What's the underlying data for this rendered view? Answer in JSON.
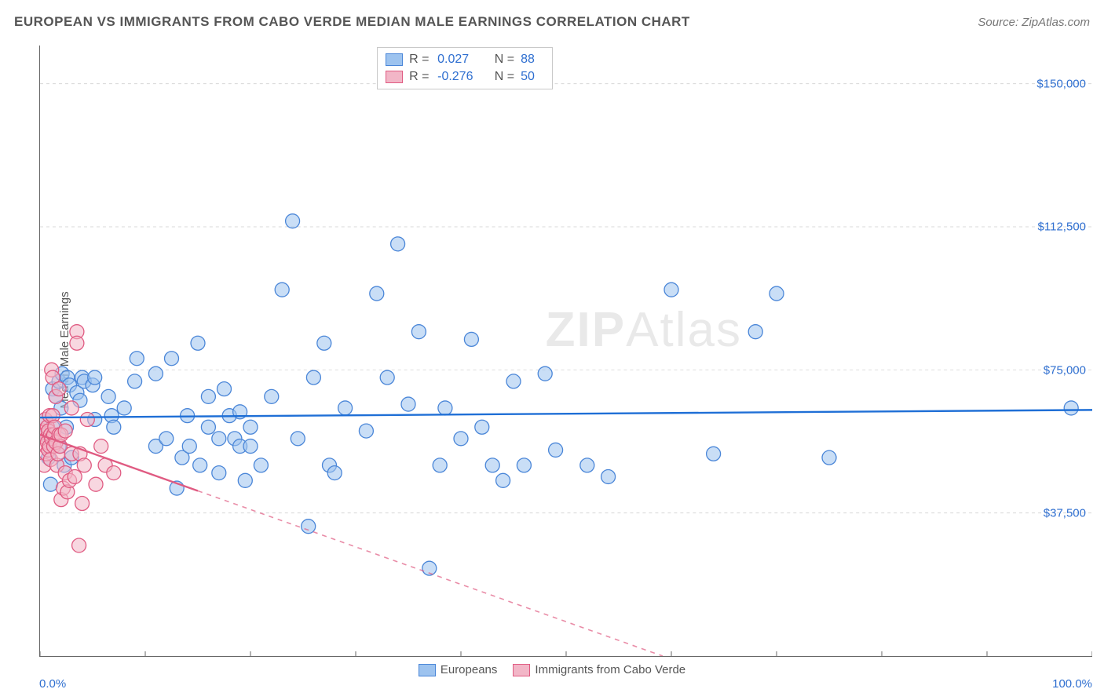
{
  "title": "EUROPEAN VS IMMIGRANTS FROM CABO VERDE MEDIAN MALE EARNINGS CORRELATION CHART",
  "source_label": "Source: ",
  "source_name": "ZipAtlas.com",
  "ylabel": "Median Male Earnings",
  "watermark_a": "ZIP",
  "watermark_b": "Atlas",
  "chart": {
    "type": "scatter",
    "x_domain": [
      0,
      100
    ],
    "y_domain": [
      0,
      160000
    ],
    "x_tick_positions": [
      0,
      10,
      20,
      30,
      40,
      50,
      60,
      70,
      80,
      90,
      100
    ],
    "x_labels": {
      "min": "0.0%",
      "max": "100.0%"
    },
    "y_grid": [
      {
        "v": 37500,
        "label": "$37,500"
      },
      {
        "v": 75000,
        "label": "$75,000"
      },
      {
        "v": 112500,
        "label": "$112,500"
      },
      {
        "v": 150000,
        "label": "$150,000"
      }
    ],
    "background_color": "#ffffff",
    "grid_color": "#d8d8d8",
    "axis_color": "#666666",
    "label_color": "#2f6fd0",
    "point_radius": 9,
    "point_opacity": 0.55,
    "series": [
      {
        "name": "Europeans",
        "fill": "#9dc3ef",
        "stroke": "#4a86d8",
        "line_color": "#1f6fd6",
        "r": "0.027",
        "n": "88",
        "trend": {
          "x1": 0,
          "y1": 62500,
          "x2": 100,
          "y2": 64500,
          "dash_after_x": 100
        },
        "points": [
          [
            0.5,
            62000
          ],
          [
            0.6,
            58000
          ],
          [
            0.8,
            52000
          ],
          [
            1.0,
            45000
          ],
          [
            1.2,
            70000
          ],
          [
            1.2,
            60000
          ],
          [
            1.5,
            68000
          ],
          [
            1.8,
            72000
          ],
          [
            1.8,
            55000
          ],
          [
            2.0,
            65000
          ],
          [
            2.1,
            74000
          ],
          [
            2.3,
            50000
          ],
          [
            2.5,
            60000
          ],
          [
            2.6,
            73000
          ],
          [
            2.8,
            71000
          ],
          [
            3.0,
            52000
          ],
          [
            3.5,
            69000
          ],
          [
            3.8,
            67000
          ],
          [
            4.0,
            73000
          ],
          [
            4.2,
            72000
          ],
          [
            5.0,
            71000
          ],
          [
            5.2,
            62000
          ],
          [
            5.2,
            73000
          ],
          [
            6.5,
            68000
          ],
          [
            6.8,
            63000
          ],
          [
            7.0,
            60000
          ],
          [
            8.0,
            65000
          ],
          [
            9.0,
            72000
          ],
          [
            9.2,
            78000
          ],
          [
            11.0,
            55000
          ],
          [
            11.0,
            74000
          ],
          [
            12.0,
            57000
          ],
          [
            12.5,
            78000
          ],
          [
            13.0,
            44000
          ],
          [
            13.5,
            52000
          ],
          [
            14.0,
            63000
          ],
          [
            14.2,
            55000
          ],
          [
            15.0,
            82000
          ],
          [
            15.2,
            50000
          ],
          [
            16.0,
            60000
          ],
          [
            16.0,
            68000
          ],
          [
            17.0,
            57000
          ],
          [
            17.0,
            48000
          ],
          [
            17.5,
            70000
          ],
          [
            18.0,
            63000
          ],
          [
            18.5,
            57000
          ],
          [
            19.0,
            55000
          ],
          [
            19.0,
            64000
          ],
          [
            19.5,
            46000
          ],
          [
            20.0,
            55000
          ],
          [
            20.0,
            60000
          ],
          [
            21.0,
            50000
          ],
          [
            22.0,
            68000
          ],
          [
            23.0,
            96000
          ],
          [
            24.0,
            114000
          ],
          [
            24.5,
            57000
          ],
          [
            25.5,
            34000
          ],
          [
            26.0,
            73000
          ],
          [
            27.0,
            82000
          ],
          [
            27.5,
            50000
          ],
          [
            28.0,
            48000
          ],
          [
            29.0,
            65000
          ],
          [
            31.0,
            59000
          ],
          [
            32.0,
            95000
          ],
          [
            33.0,
            73000
          ],
          [
            34.0,
            108000
          ],
          [
            35.0,
            66000
          ],
          [
            36.0,
            85000
          ],
          [
            37.0,
            23000
          ],
          [
            38.0,
            50000
          ],
          [
            38.5,
            65000
          ],
          [
            40.0,
            57000
          ],
          [
            41.0,
            83000
          ],
          [
            42.0,
            60000
          ],
          [
            43.0,
            50000
          ],
          [
            44.0,
            46000
          ],
          [
            45.0,
            72000
          ],
          [
            46.0,
            50000
          ],
          [
            48.0,
            74000
          ],
          [
            49.0,
            54000
          ],
          [
            52.0,
            50000
          ],
          [
            54.0,
            47000
          ],
          [
            60.0,
            96000
          ],
          [
            64.0,
            53000
          ],
          [
            68.0,
            85000
          ],
          [
            70.0,
            95000
          ],
          [
            75.0,
            52000
          ],
          [
            98.0,
            65000
          ]
        ]
      },
      {
        "name": "Immigrants from Cabo Verde",
        "fill": "#f2b6c7",
        "stroke": "#e05b82",
        "line_color": "#e05b82",
        "r": "-0.276",
        "n": "50",
        "trend": {
          "x1": 0,
          "y1": 58000,
          "x2": 100,
          "y2": -40000,
          "dash_after_x": 15
        },
        "points": [
          [
            0.3,
            59000
          ],
          [
            0.4,
            50000
          ],
          [
            0.4,
            58000
          ],
          [
            0.5,
            55000
          ],
          [
            0.5,
            62000
          ],
          [
            0.6,
            53000
          ],
          [
            0.6,
            57000
          ],
          [
            0.7,
            60000
          ],
          [
            0.7,
            56000
          ],
          [
            0.8,
            59000
          ],
          [
            0.8,
            54000
          ],
          [
            0.9,
            63000
          ],
          [
            0.9,
            55000
          ],
          [
            1.0,
            51500
          ],
          [
            1.0,
            58000
          ],
          [
            1.1,
            75000
          ],
          [
            1.1,
            57000
          ],
          [
            1.2,
            73000
          ],
          [
            1.2,
            63000
          ],
          [
            1.3,
            58000
          ],
          [
            1.3,
            55000
          ],
          [
            1.4,
            60000
          ],
          [
            1.5,
            56000
          ],
          [
            1.5,
            68000
          ],
          [
            1.6,
            50000
          ],
          [
            1.7,
            53000
          ],
          [
            1.8,
            58000
          ],
          [
            1.8,
            70000
          ],
          [
            1.9,
            55000
          ],
          [
            2.0,
            41000
          ],
          [
            2.0,
            58000
          ],
          [
            2.2,
            44000
          ],
          [
            2.4,
            48000
          ],
          [
            2.4,
            59000
          ],
          [
            2.6,
            43000
          ],
          [
            2.8,
            46000
          ],
          [
            3.0,
            53000
          ],
          [
            3.0,
            65000
          ],
          [
            3.3,
            47000
          ],
          [
            3.5,
            85000
          ],
          [
            3.5,
            82000
          ],
          [
            3.7,
            29000
          ],
          [
            3.8,
            53000
          ],
          [
            4.0,
            40000
          ],
          [
            4.2,
            50000
          ],
          [
            4.5,
            62000
          ],
          [
            5.3,
            45000
          ],
          [
            5.8,
            55000
          ],
          [
            6.2,
            50000
          ],
          [
            7.0,
            48000
          ]
        ]
      }
    ]
  },
  "legend_top": {
    "r_label": "R =",
    "n_label": "N ="
  },
  "legend_bottom": {
    "items": [
      "Europeans",
      "Immigrants from Cabo Verde"
    ]
  }
}
